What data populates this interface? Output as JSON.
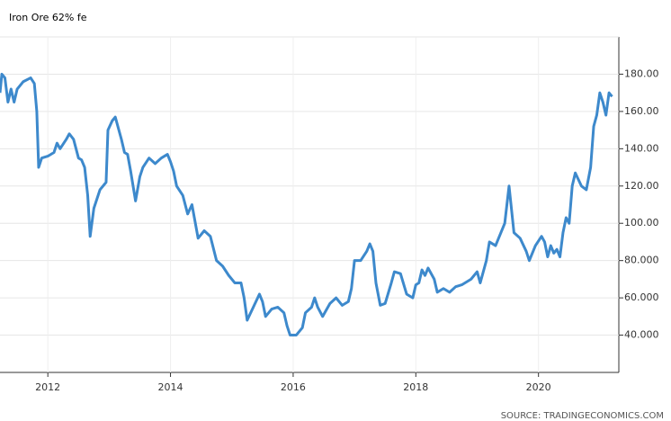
{
  "chart_data": {
    "type": "line",
    "title": "Iron Ore 62% fe",
    "source": "SOURCE: TRADINGECONOMICS.COM",
    "series": [
      {
        "name": "Iron Ore 62% fe",
        "color": "#3d89cc",
        "x": [
          2011.22,
          2011.25,
          2011.3,
          2011.35,
          2011.4,
          2011.45,
          2011.5,
          2011.6,
          2011.72,
          2011.78,
          2011.82,
          2011.85,
          2011.9,
          2012.0,
          2012.1,
          2012.15,
          2012.2,
          2012.3,
          2012.35,
          2012.42,
          2012.5,
          2012.55,
          2012.6,
          2012.65,
          2012.69,
          2012.75,
          2012.85,
          2012.95,
          2012.98,
          2013.05,
          2013.1,
          2013.2,
          2013.25,
          2013.3,
          2013.35,
          2013.43,
          2013.5,
          2013.55,
          2013.65,
          2013.75,
          2013.85,
          2013.95,
          2014.0,
          2014.05,
          2014.1,
          2014.2,
          2014.28,
          2014.35,
          2014.45,
          2014.55,
          2014.65,
          2014.75,
          2014.85,
          2014.95,
          2015.05,
          2015.15,
          2015.2,
          2015.25,
          2015.35,
          2015.45,
          2015.5,
          2015.55,
          2015.65,
          2015.75,
          2015.85,
          2015.9,
          2015.95,
          2016.05,
          2016.15,
          2016.2,
          2016.3,
          2016.35,
          2016.4,
          2016.48,
          2016.6,
          2016.7,
          2016.8,
          2016.9,
          2016.95,
          2017.0,
          2017.1,
          2017.2,
          2017.25,
          2017.3,
          2017.35,
          2017.42,
          2017.5,
          2017.6,
          2017.65,
          2017.75,
          2017.85,
          2017.95,
          2018.0,
          2018.05,
          2018.1,
          2018.15,
          2018.2,
          2018.3,
          2018.35,
          2018.45,
          2018.55,
          2018.65,
          2018.75,
          2018.9,
          2019.0,
          2019.05,
          2019.15,
          2019.2,
          2019.3,
          2019.35,
          2019.45,
          2019.52,
          2019.6,
          2019.7,
          2019.8,
          2019.85,
          2019.95,
          2020.05,
          2020.1,
          2020.15,
          2020.2,
          2020.25,
          2020.3,
          2020.35,
          2020.4,
          2020.45,
          2020.5,
          2020.55,
          2020.6,
          2020.7,
          2020.78,
          2020.85,
          2020.9,
          2020.95,
          2021.0,
          2021.05,
          2021.1,
          2021.15,
          2021.2
        ],
        "values": [
          170,
          180,
          178,
          165,
          172,
          165,
          172,
          176,
          178,
          175,
          160,
          130,
          135,
          136,
          138,
          143,
          140,
          145,
          148,
          145,
          135,
          134,
          130,
          115,
          93,
          108,
          118,
          122,
          150,
          155,
          157,
          145,
          138,
          137,
          128,
          112,
          125,
          130,
          135,
          132,
          135,
          137,
          133,
          128,
          120,
          115,
          105,
          110,
          92,
          96,
          93,
          80,
          77,
          72,
          68,
          68,
          60,
          48,
          55,
          62,
          58,
          50,
          54,
          55,
          52,
          45,
          40,
          40,
          44,
          52,
          55,
          60,
          55,
          50,
          57,
          60,
          56,
          58,
          65,
          80,
          80,
          85,
          89,
          85,
          68,
          56,
          57,
          68,
          74,
          73,
          62,
          60,
          67,
          68,
          75,
          72,
          76,
          70,
          63,
          65,
          63,
          66,
          67,
          70,
          74,
          68,
          80,
          90,
          88,
          92,
          100,
          120,
          95,
          92,
          85,
          80,
          88,
          93,
          90,
          82,
          88,
          84,
          86,
          82,
          95,
          103,
          100,
          120,
          127,
          120,
          118,
          130,
          152,
          158,
          170,
          165,
          158,
          170,
          168
        ]
      }
    ],
    "xlim": [
      2011.22,
      2021.31
    ],
    "xticks": [
      2012,
      2014,
      2016,
      2018,
      2020
    ],
    "ylim": [
      20,
      200
    ],
    "yticks": [
      {
        "value": 40,
        "label": "40.000"
      },
      {
        "value": 60,
        "label": "60.000"
      },
      {
        "value": 80,
        "label": "80.000"
      },
      {
        "value": 100,
        "label": "100.00"
      },
      {
        "value": 120,
        "label": "120.00"
      },
      {
        "value": 140,
        "label": "140.00"
      },
      {
        "value": 160,
        "label": "160.00"
      },
      {
        "value": 180,
        "label": "180.00"
      }
    ],
    "grid": true
  }
}
